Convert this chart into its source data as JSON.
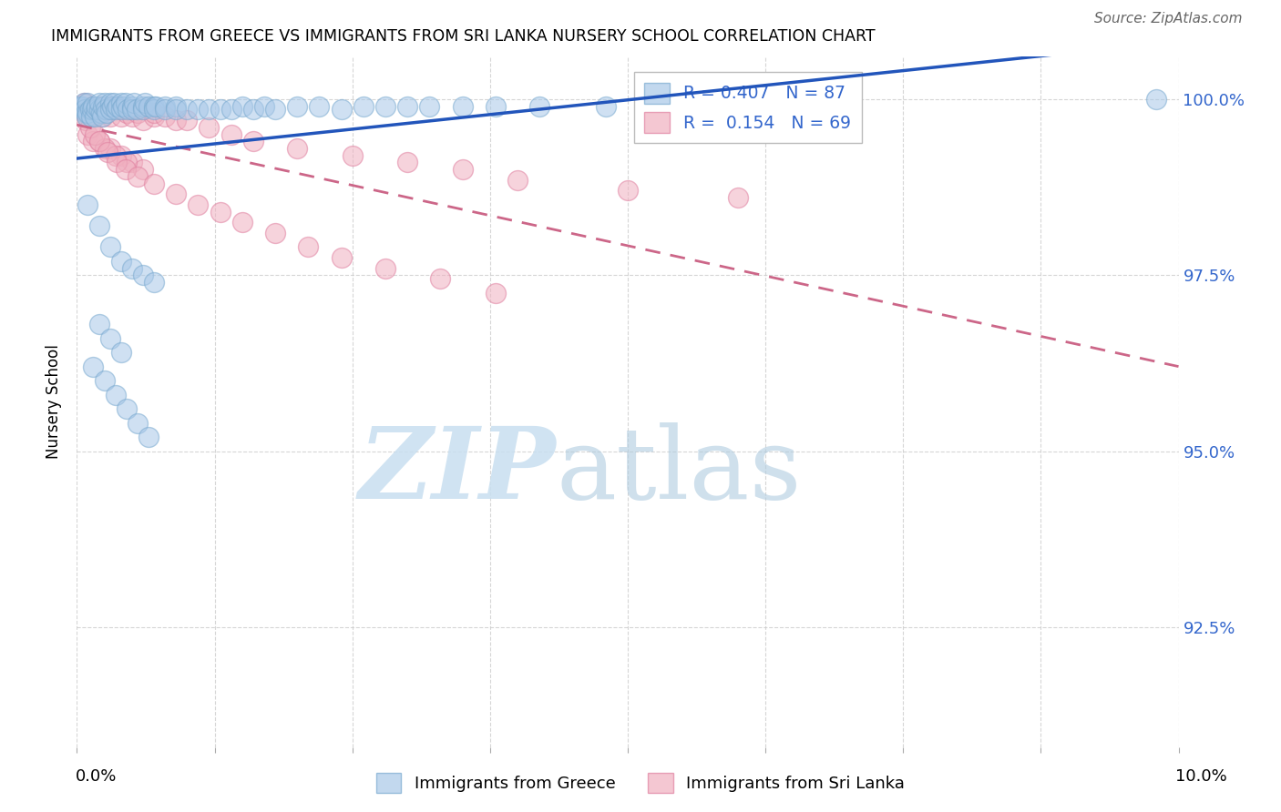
{
  "title": "IMMIGRANTS FROM GREECE VS IMMIGRANTS FROM SRI LANKA NURSERY SCHOOL CORRELATION CHART",
  "source": "Source: ZipAtlas.com",
  "ylabel": "Nursery School",
  "y_tick_values": [
    0.925,
    0.95,
    0.975,
    1.0
  ],
  "y_tick_labels": [
    "92.5%",
    "95.0%",
    "97.5%",
    "100.0%"
  ],
  "x_range": [
    0.0,
    0.1
  ],
  "y_range": [
    0.908,
    1.006
  ],
  "greece_color": "#a8c8e8",
  "srilanka_color": "#f0b0c0",
  "greece_edge_color": "#7aaad0",
  "srilanka_edge_color": "#e080a0",
  "greece_line_color": "#2255bb",
  "srilanka_line_color": "#cc6688",
  "background_color": "#ffffff",
  "grid_color": "#cccccc",
  "greece_x": [
    0.0002,
    0.0004,
    0.0005,
    0.0006,
    0.0007,
    0.0008,
    0.0009,
    0.001,
    0.001,
    0.0012,
    0.0013,
    0.0014,
    0.0015,
    0.0016,
    0.0017,
    0.0018,
    0.002,
    0.002,
    0.0022,
    0.0023,
    0.0024,
    0.0025,
    0.0026,
    0.0027,
    0.003,
    0.003,
    0.0032,
    0.0034,
    0.0035,
    0.0037,
    0.004,
    0.004,
    0.0042,
    0.0044,
    0.0046,
    0.005,
    0.005,
    0.0052,
    0.0054,
    0.006,
    0.006,
    0.0062,
    0.0065,
    0.007,
    0.007,
    0.0072,
    0.008,
    0.008,
    0.009,
    0.009,
    0.01,
    0.011,
    0.012,
    0.013,
    0.014,
    0.015,
    0.016,
    0.017,
    0.018,
    0.02,
    0.022,
    0.024,
    0.026,
    0.028,
    0.03,
    0.032,
    0.035,
    0.038,
    0.042,
    0.048,
    0.001,
    0.002,
    0.003,
    0.004,
    0.005,
    0.006,
    0.007,
    0.002,
    0.003,
    0.004,
    0.0015,
    0.0025,
    0.0035,
    0.0045,
    0.0055,
    0.0065,
    0.098
  ],
  "greece_y": [
    0.999,
    0.999,
    0.999,
    0.9995,
    0.9985,
    0.998,
    0.9975,
    0.9995,
    0.998,
    0.9985,
    0.9975,
    0.9985,
    0.999,
    0.9975,
    0.9985,
    0.999,
    0.9985,
    0.9995,
    0.998,
    0.9975,
    0.999,
    0.9995,
    0.9985,
    0.998,
    0.9995,
    0.9985,
    0.999,
    0.9995,
    0.9985,
    0.999,
    0.9995,
    0.9985,
    0.999,
    0.9995,
    0.9985,
    0.999,
    0.9985,
    0.9995,
    0.9985,
    0.999,
    0.9985,
    0.9995,
    0.999,
    0.999,
    0.9985,
    0.999,
    0.999,
    0.9985,
    0.999,
    0.9985,
    0.9985,
    0.9985,
    0.9985,
    0.9985,
    0.9985,
    0.999,
    0.9985,
    0.999,
    0.9985,
    0.999,
    0.999,
    0.9985,
    0.999,
    0.999,
    0.999,
    0.999,
    0.999,
    0.999,
    0.999,
    0.999,
    0.985,
    0.982,
    0.979,
    0.977,
    0.976,
    0.975,
    0.974,
    0.968,
    0.966,
    0.964,
    0.962,
    0.96,
    0.958,
    0.956,
    0.954,
    0.952,
    1.0
  ],
  "srilanka_x": [
    0.0003,
    0.0005,
    0.0007,
    0.0009,
    0.001,
    0.0012,
    0.0014,
    0.0016,
    0.0018,
    0.002,
    0.0022,
    0.0024,
    0.0026,
    0.003,
    0.003,
    0.0032,
    0.0035,
    0.004,
    0.004,
    0.0045,
    0.005,
    0.005,
    0.0055,
    0.006,
    0.006,
    0.007,
    0.007,
    0.008,
    0.009,
    0.01,
    0.001,
    0.002,
    0.003,
    0.004,
    0.005,
    0.006,
    0.0015,
    0.0025,
    0.0035,
    0.0045,
    0.012,
    0.014,
    0.016,
    0.02,
    0.025,
    0.03,
    0.035,
    0.04,
    0.05,
    0.06,
    0.0008,
    0.0012,
    0.0016,
    0.002,
    0.0028,
    0.0036,
    0.0044,
    0.0055,
    0.007,
    0.009,
    0.011,
    0.013,
    0.015,
    0.018,
    0.021,
    0.024,
    0.028,
    0.033,
    0.038
  ],
  "srilanka_y": [
    0.999,
    0.9985,
    0.9995,
    0.9975,
    0.9985,
    0.998,
    0.999,
    0.9975,
    0.9985,
    0.998,
    0.999,
    0.9975,
    0.9985,
    0.999,
    0.9975,
    0.9985,
    0.999,
    0.9985,
    0.9975,
    0.998,
    0.9985,
    0.9975,
    0.998,
    0.9985,
    0.997,
    0.9975,
    0.998,
    0.9975,
    0.997,
    0.997,
    0.995,
    0.994,
    0.993,
    0.992,
    0.991,
    0.99,
    0.994,
    0.993,
    0.992,
    0.991,
    0.996,
    0.995,
    0.994,
    0.993,
    0.992,
    0.991,
    0.99,
    0.9885,
    0.987,
    0.986,
    0.997,
    0.996,
    0.995,
    0.994,
    0.9925,
    0.991,
    0.99,
    0.989,
    0.988,
    0.9865,
    0.985,
    0.984,
    0.9825,
    0.981,
    0.979,
    0.9775,
    0.976,
    0.9745,
    0.9725
  ],
  "watermark_zip_color": "#c8dff0",
  "watermark_atlas_color": "#b0cce0"
}
